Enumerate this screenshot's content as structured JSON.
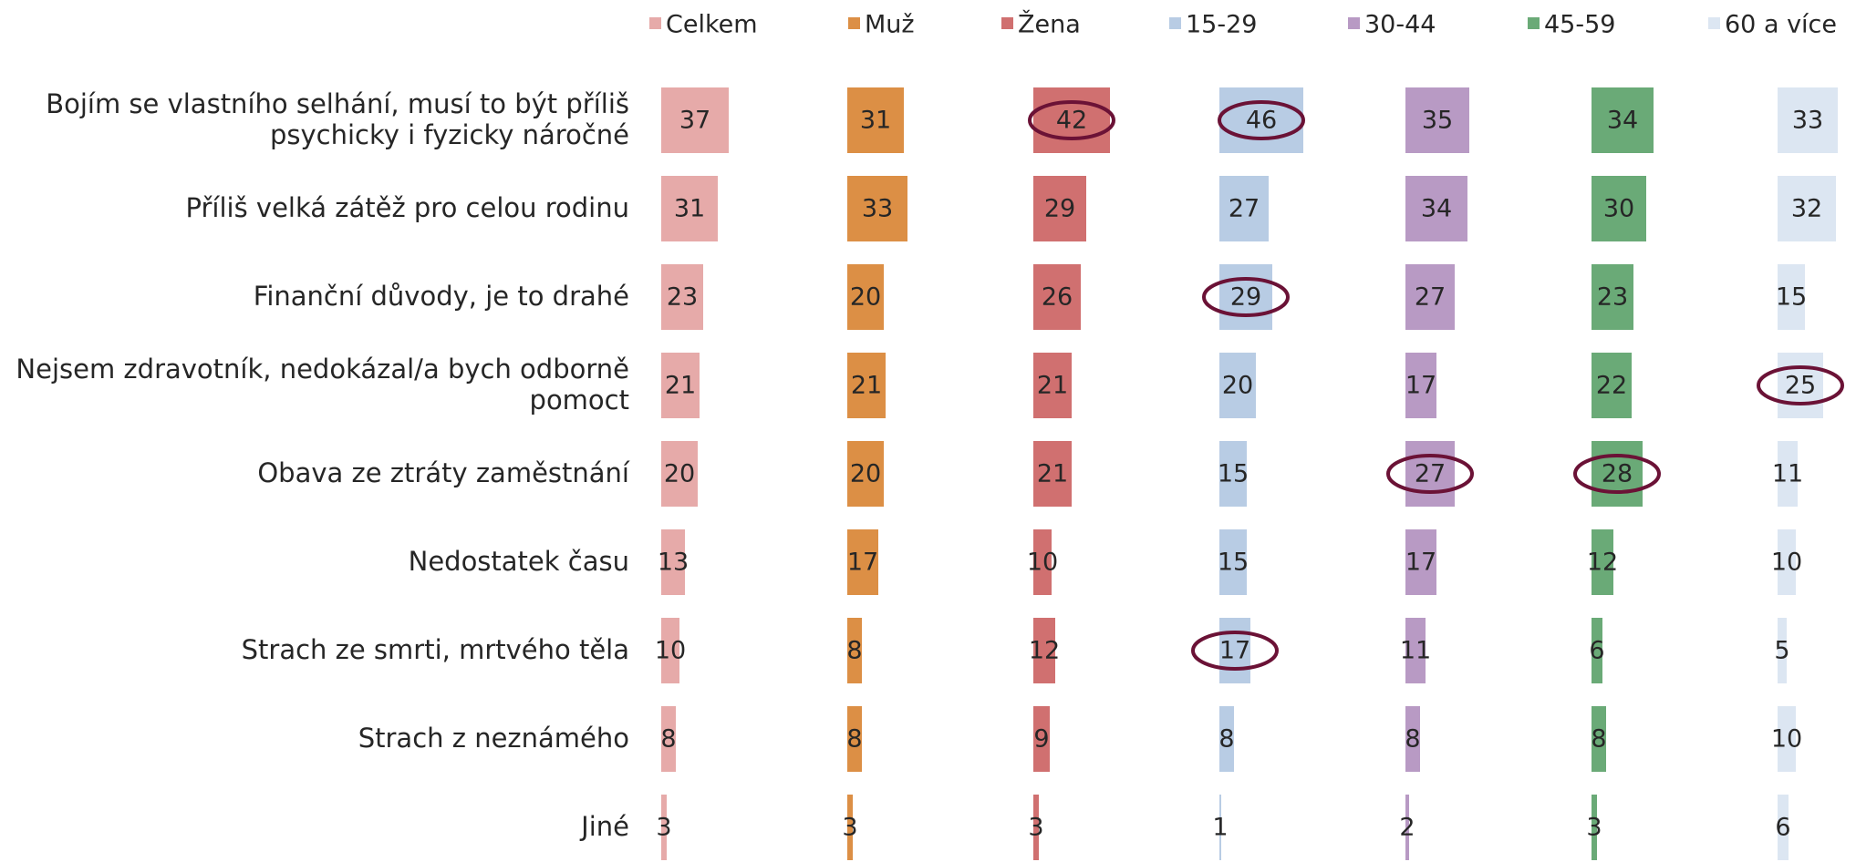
{
  "chart_data": {
    "type": "bar",
    "categories": [
      "Bojím se vlastního selhání, musí to být příliš psychicky i fyzicky náročné",
      "Příliš velká zátěž pro celou rodinu",
      "Finanční důvody, je to drahé",
      "Nejsem zdravotník, nedokázal/a bych odborně pomoct",
      "Obava ze ztráty zaměstnání",
      "Nedostatek času",
      "Strach ze smrti, mrtvého těla",
      "Strach z neznámého",
      "Jiné"
    ],
    "series": [
      {
        "name": "Celkem",
        "color": "#e6aaa9",
        "values": [
          37,
          31,
          23,
          21,
          20,
          13,
          10,
          8,
          3
        ]
      },
      {
        "name": "Muž",
        "color": "#dc8f45",
        "values": [
          31,
          33,
          20,
          21,
          20,
          17,
          8,
          8,
          3
        ]
      },
      {
        "name": "Žena",
        "color": "#d07070",
        "values": [
          42,
          29,
          26,
          21,
          21,
          10,
          12,
          9,
          3
        ]
      },
      {
        "name": "15-29",
        "color": "#b8cce4",
        "values": [
          46,
          27,
          29,
          20,
          15,
          15,
          17,
          8,
          1
        ]
      },
      {
        "name": "30-44",
        "color": "#b89ac4",
        "values": [
          35,
          34,
          27,
          17,
          27,
          17,
          11,
          8,
          2
        ]
      },
      {
        "name": "45-59",
        "color": "#6aaa77",
        "values": [
          34,
          30,
          23,
          22,
          28,
          12,
          6,
          8,
          3
        ]
      },
      {
        "name": "60 a více",
        "color": "#dce6f2",
        "values": [
          33,
          32,
          15,
          25,
          11,
          10,
          5,
          10,
          6
        ]
      }
    ]
  }
}
